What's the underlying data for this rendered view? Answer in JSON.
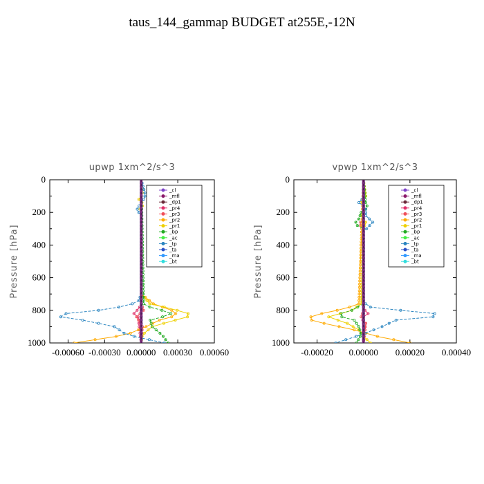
{
  "figure_title": "taus_144_gammap  BUDGET at255E,-12N",
  "chart_data": [
    {
      "type": "line",
      "title": "upwp   1xm^2/s^3",
      "ylabel": "Pressure [hPa]",
      "xlim": [
        -0.00075,
        0.0006
      ],
      "ylim": [
        1000,
        0
      ],
      "yticks": [
        0,
        200,
        400,
        600,
        800,
        1000
      ],
      "xtick_labels": [
        {
          "v": -0.0006,
          "t": "-0.00060"
        },
        {
          "v": -0.0003,
          "t": "-0.00030"
        },
        {
          "v": 0.0,
          "t": "0.00000"
        },
        {
          "v": 0.0003,
          "t": "0.00030"
        },
        {
          "v": 0.0006,
          "t": "0.00060"
        }
      ],
      "series": [
        {
          "name": "_cl",
          "color": "#7f44c8",
          "p": [
            0,
            1000
          ],
          "v": [
            0,
            0
          ]
        },
        {
          "name": "_mfl",
          "color": "#8a1a6a",
          "p": [
            0,
            1000
          ],
          "v": [
            0,
            0
          ]
        },
        {
          "name": "_dp1",
          "color": "#6b2a3a",
          "p": [
            0,
            1000
          ],
          "v": [
            0,
            0
          ]
        },
        {
          "name": "_pr4",
          "color": "#e0306a",
          "p": [
            0,
            760,
            790,
            820,
            850,
            880,
            1000
          ],
          "v": [
            0,
            0,
            -2e-05,
            -6e-05,
            -1e-05,
            -2e-05,
            0
          ]
        },
        {
          "name": "_pr3",
          "color": "#f0505a",
          "p": [
            0,
            760,
            800,
            840,
            900,
            1000
          ],
          "v": [
            0,
            0,
            2e-05,
            -4e-05,
            1e-05,
            0
          ]
        },
        {
          "name": "_pr2",
          "color": "#ffaa00",
          "p": [
            0,
            700,
            760,
            800,
            830,
            860,
            900,
            950,
            1000
          ],
          "v": [
            0,
            0,
            0.0001,
            0.00025,
            0.0003,
            0.00015,
            4e-05,
            -0.00012,
            -0.00055
          ]
        },
        {
          "name": "_pr1",
          "color": "#eed000",
          "p": [
            0,
            90,
            120,
            150,
            180,
            200,
            700,
            760,
            790,
            830,
            860,
            900,
            950,
            1000
          ],
          "v": [
            0,
            1e-05,
            -2e-05,
            2e-05,
            -1e-05,
            0,
            0,
            7e-05,
            0.00025,
            0.00043,
            0.00028,
            9e-05,
            1e-05,
            0
          ]
        },
        {
          "name": "_bp",
          "color": "#22aa22",
          "p": [
            0,
            770,
            800,
            830,
            850,
            900,
            950,
            1000
          ],
          "v": [
            0,
            2e-05,
            0.00017,
            0.00028,
            7e-05,
            9e-05,
            0.00017,
            0.00022
          ]
        },
        {
          "name": "_ac",
          "color": "#44ee44",
          "p": [
            0,
            1000
          ],
          "v": [
            0,
            0
          ]
        },
        {
          "name": "_tp",
          "color": "#2a85c0",
          "p": [
            0,
            80,
            110,
            150,
            190,
            210,
            700,
            740,
            770,
            800,
            830,
            860,
            900,
            950,
            1000
          ],
          "v": [
            0,
            3e-05,
            3e-05,
            -1e-05,
            -4e-05,
            0,
            0,
            -2e-05,
            -0.0001,
            -0.00035,
            -0.00075,
            -0.00048,
            -0.00022,
            -0.00012,
            0.00019
          ]
        },
        {
          "name": "_ta",
          "color": "#2a50c8",
          "p": [
            0,
            1000
          ],
          "v": [
            0,
            0
          ]
        },
        {
          "name": "_ma",
          "color": "#3399ff",
          "p": [
            0,
            1000
          ],
          "v": [
            0,
            0
          ]
        },
        {
          "name": "_bt",
          "color": "#33dddd",
          "p": [
            0,
            1000
          ],
          "v": [
            0,
            0
          ]
        }
      ]
    },
    {
      "type": "line",
      "title": "vpwp   1xm^2/s^3",
      "ylabel": "Pressure [hPa]",
      "xlim": [
        -0.0003,
        0.0004
      ],
      "ylim": [
        1000,
        0
      ],
      "yticks": [
        0,
        200,
        400,
        600,
        800,
        1000
      ],
      "xtick_labels": [
        {
          "v": -0.0002,
          "t": "-0.00020"
        },
        {
          "v": 0.0,
          "t": "0.00000"
        },
        {
          "v": 0.0002,
          "t": "0.00020"
        },
        {
          "v": 0.0004,
          "t": "0.00040"
        }
      ],
      "series": [
        {
          "name": "_cl",
          "color": "#7f44c8",
          "p": [
            0,
            1000
          ],
          "v": [
            0,
            0
          ]
        },
        {
          "name": "_mfl",
          "color": "#8a1a6a",
          "p": [
            0,
            1000
          ],
          "v": [
            0,
            0
          ]
        },
        {
          "name": "_dp1",
          "color": "#6b2a3a",
          "p": [
            0,
            1000
          ],
          "v": [
            0,
            0
          ]
        },
        {
          "name": "_pr4",
          "color": "#e0306a",
          "p": [
            0,
            790,
            820,
            850,
            880,
            1000
          ],
          "v": [
            0,
            0,
            2e-05,
            -1e-05,
            1e-05,
            0
          ]
        },
        {
          "name": "_pr3",
          "color": "#f0505a",
          "p": [
            0,
            240,
            270,
            300,
            800,
            840,
            880,
            1000
          ],
          "v": [
            0,
            0,
            -2e-05,
            0,
            0,
            -1e-05,
            1e-05,
            0
          ]
        },
        {
          "name": "_pr2",
          "color": "#ffaa00",
          "p": [
            0,
            760,
            790,
            820,
            850,
            880,
            920,
            960,
            1000
          ],
          "v": [
            0,
            -2e-05,
            -8e-05,
            -0.00018,
            -0.00025,
            -0.00017,
            -4e-05,
            6e-05,
            0.0002
          ]
        },
        {
          "name": "_pr1",
          "color": "#eed000",
          "p": [
            0,
            100,
            140,
            180,
            220,
            260,
            300,
            760,
            800,
            840,
            880,
            920,
            960,
            1000
          ],
          "v": [
            0,
            1e-05,
            -1e-05,
            1e-05,
            -1e-05,
            1e-05,
            0,
            -1e-05,
            -5e-05,
            -0.00015,
            -7e-05,
            -2e-05,
            0,
            3e-05
          ]
        },
        {
          "name": "_bp",
          "color": "#22aa22",
          "p": [
            0,
            150,
            170,
            200,
            240,
            270,
            300,
            760,
            800,
            830,
            860,
            900,
            950,
            1000
          ],
          "v": [
            0,
            1e-05,
            2e-05,
            -1e-05,
            -2e-05,
            -4e-05,
            0,
            0,
            -5e-05,
            -0.00012,
            -4e-05,
            -2e-05,
            -1e-05,
            -3e-05
          ]
        },
        {
          "name": "_ac",
          "color": "#44ee44",
          "p": [
            0,
            1000
          ],
          "v": [
            0,
            0
          ]
        },
        {
          "name": "_tp",
          "color": "#2a85c0",
          "p": [
            0,
            110,
            140,
            170,
            220,
            260,
            290,
            320,
            750,
            780,
            800,
            830,
            860,
            900,
            950,
            1000
          ],
          "v": [
            0,
            0,
            -2e-05,
            1e-05,
            1e-05,
            4e-05,
            2e-05,
            0,
            0,
            3e-05,
            0.00016,
            0.00038,
            0.00014,
            8e-05,
            -1e-05,
            -0.00012
          ]
        },
        {
          "name": "_ta",
          "color": "#2a50c8",
          "p": [
            0,
            1000
          ],
          "v": [
            0,
            0
          ]
        },
        {
          "name": "_ma",
          "color": "#3399ff",
          "p": [
            0,
            1000
          ],
          "v": [
            0,
            0
          ]
        },
        {
          "name": "_bt",
          "color": "#33dddd",
          "p": [
            0,
            1000
          ],
          "v": [
            0,
            0
          ]
        }
      ]
    }
  ]
}
